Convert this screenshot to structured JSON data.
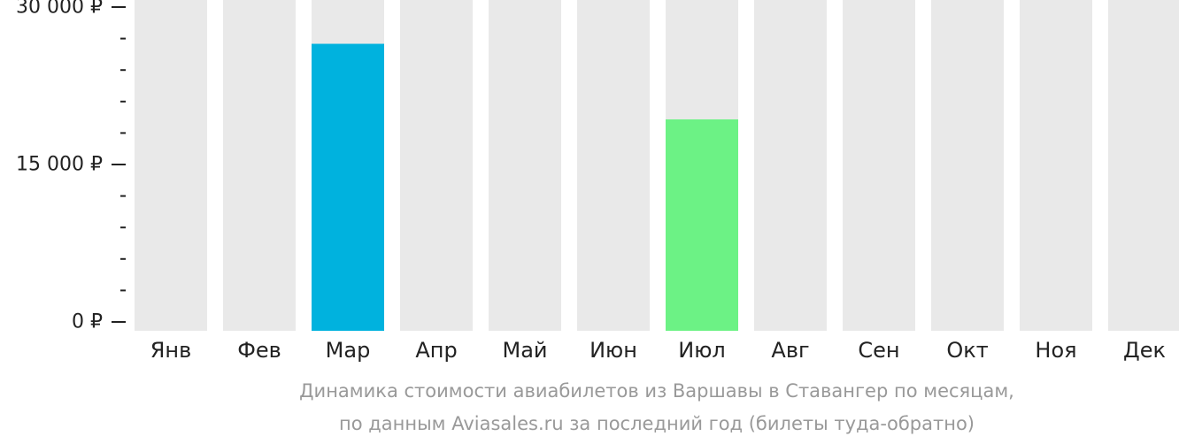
{
  "chart_data": {
    "type": "bar",
    "categories": [
      "Янв",
      "Фев",
      "Мар",
      "Апр",
      "Май",
      "Июн",
      "Июл",
      "Авг",
      "Сен",
      "Окт",
      "Ноя",
      "Дек"
    ],
    "values": [
      null,
      null,
      26500,
      null,
      null,
      null,
      19300,
      null,
      null,
      null,
      null,
      null
    ],
    "ylim": [
      0,
      30000
    ],
    "y_ticks": [
      {
        "value": 0,
        "label": "0 ₽"
      },
      {
        "value": 15000,
        "label": "15 000 ₽"
      },
      {
        "value": 30000,
        "label": "30 000 ₽"
      }
    ],
    "y_minor_ticks": [
      3000,
      6000,
      9000,
      12000,
      18000,
      21000,
      24000,
      27000
    ],
    "colors": {
      "background_bar": "#e9e9e9",
      "highlight_max": "#00b2de",
      "highlight_min": "#6cf285",
      "tick": "#222222"
    },
    "highlight": {
      "max_index": 2,
      "min_index": 6
    },
    "grid": false,
    "legend": "none"
  },
  "caption": {
    "line1": "Динамика стоимости авиабилетов из Варшавы в Ставангер по месяцам,",
    "line2": "по данным Aviasales.ru за последний год (билеты туда-обратно)"
  }
}
